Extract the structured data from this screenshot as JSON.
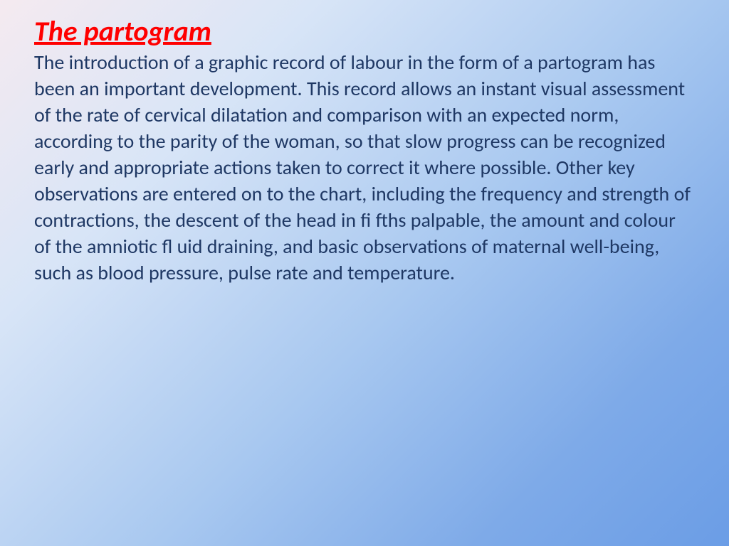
{
  "slide": {
    "title": "The partogram",
    "body": "The introduction of a graphic record of labour in the form of a partogram has been an important development. This record allows an instant visual assessment of the rate of cervical dilatation and comparison with an expected norm, according to the parity of the woman, so that slow progress can be recognized early and appropriate actions taken to correct it where possible. Other key observations are entered on to the chart, including the frequency and strength of contractions, the descent of the head in fi fths palpable, the amount and colour of the amniotic fl uid draining, and basic observations of maternal well-being, such as blood pressure, pulse rate and temperature."
  },
  "styling": {
    "title_color": "#ff0000",
    "title_fontsize": 40,
    "title_weight": "bold",
    "title_style": "italic",
    "title_decoration": "underline",
    "body_color": "#1f3864",
    "body_fontsize": 28,
    "background_gradient": {
      "start": "#f5eaf0",
      "end": "#6b9de6",
      "angle": 135
    },
    "font_family": "Calibri"
  }
}
